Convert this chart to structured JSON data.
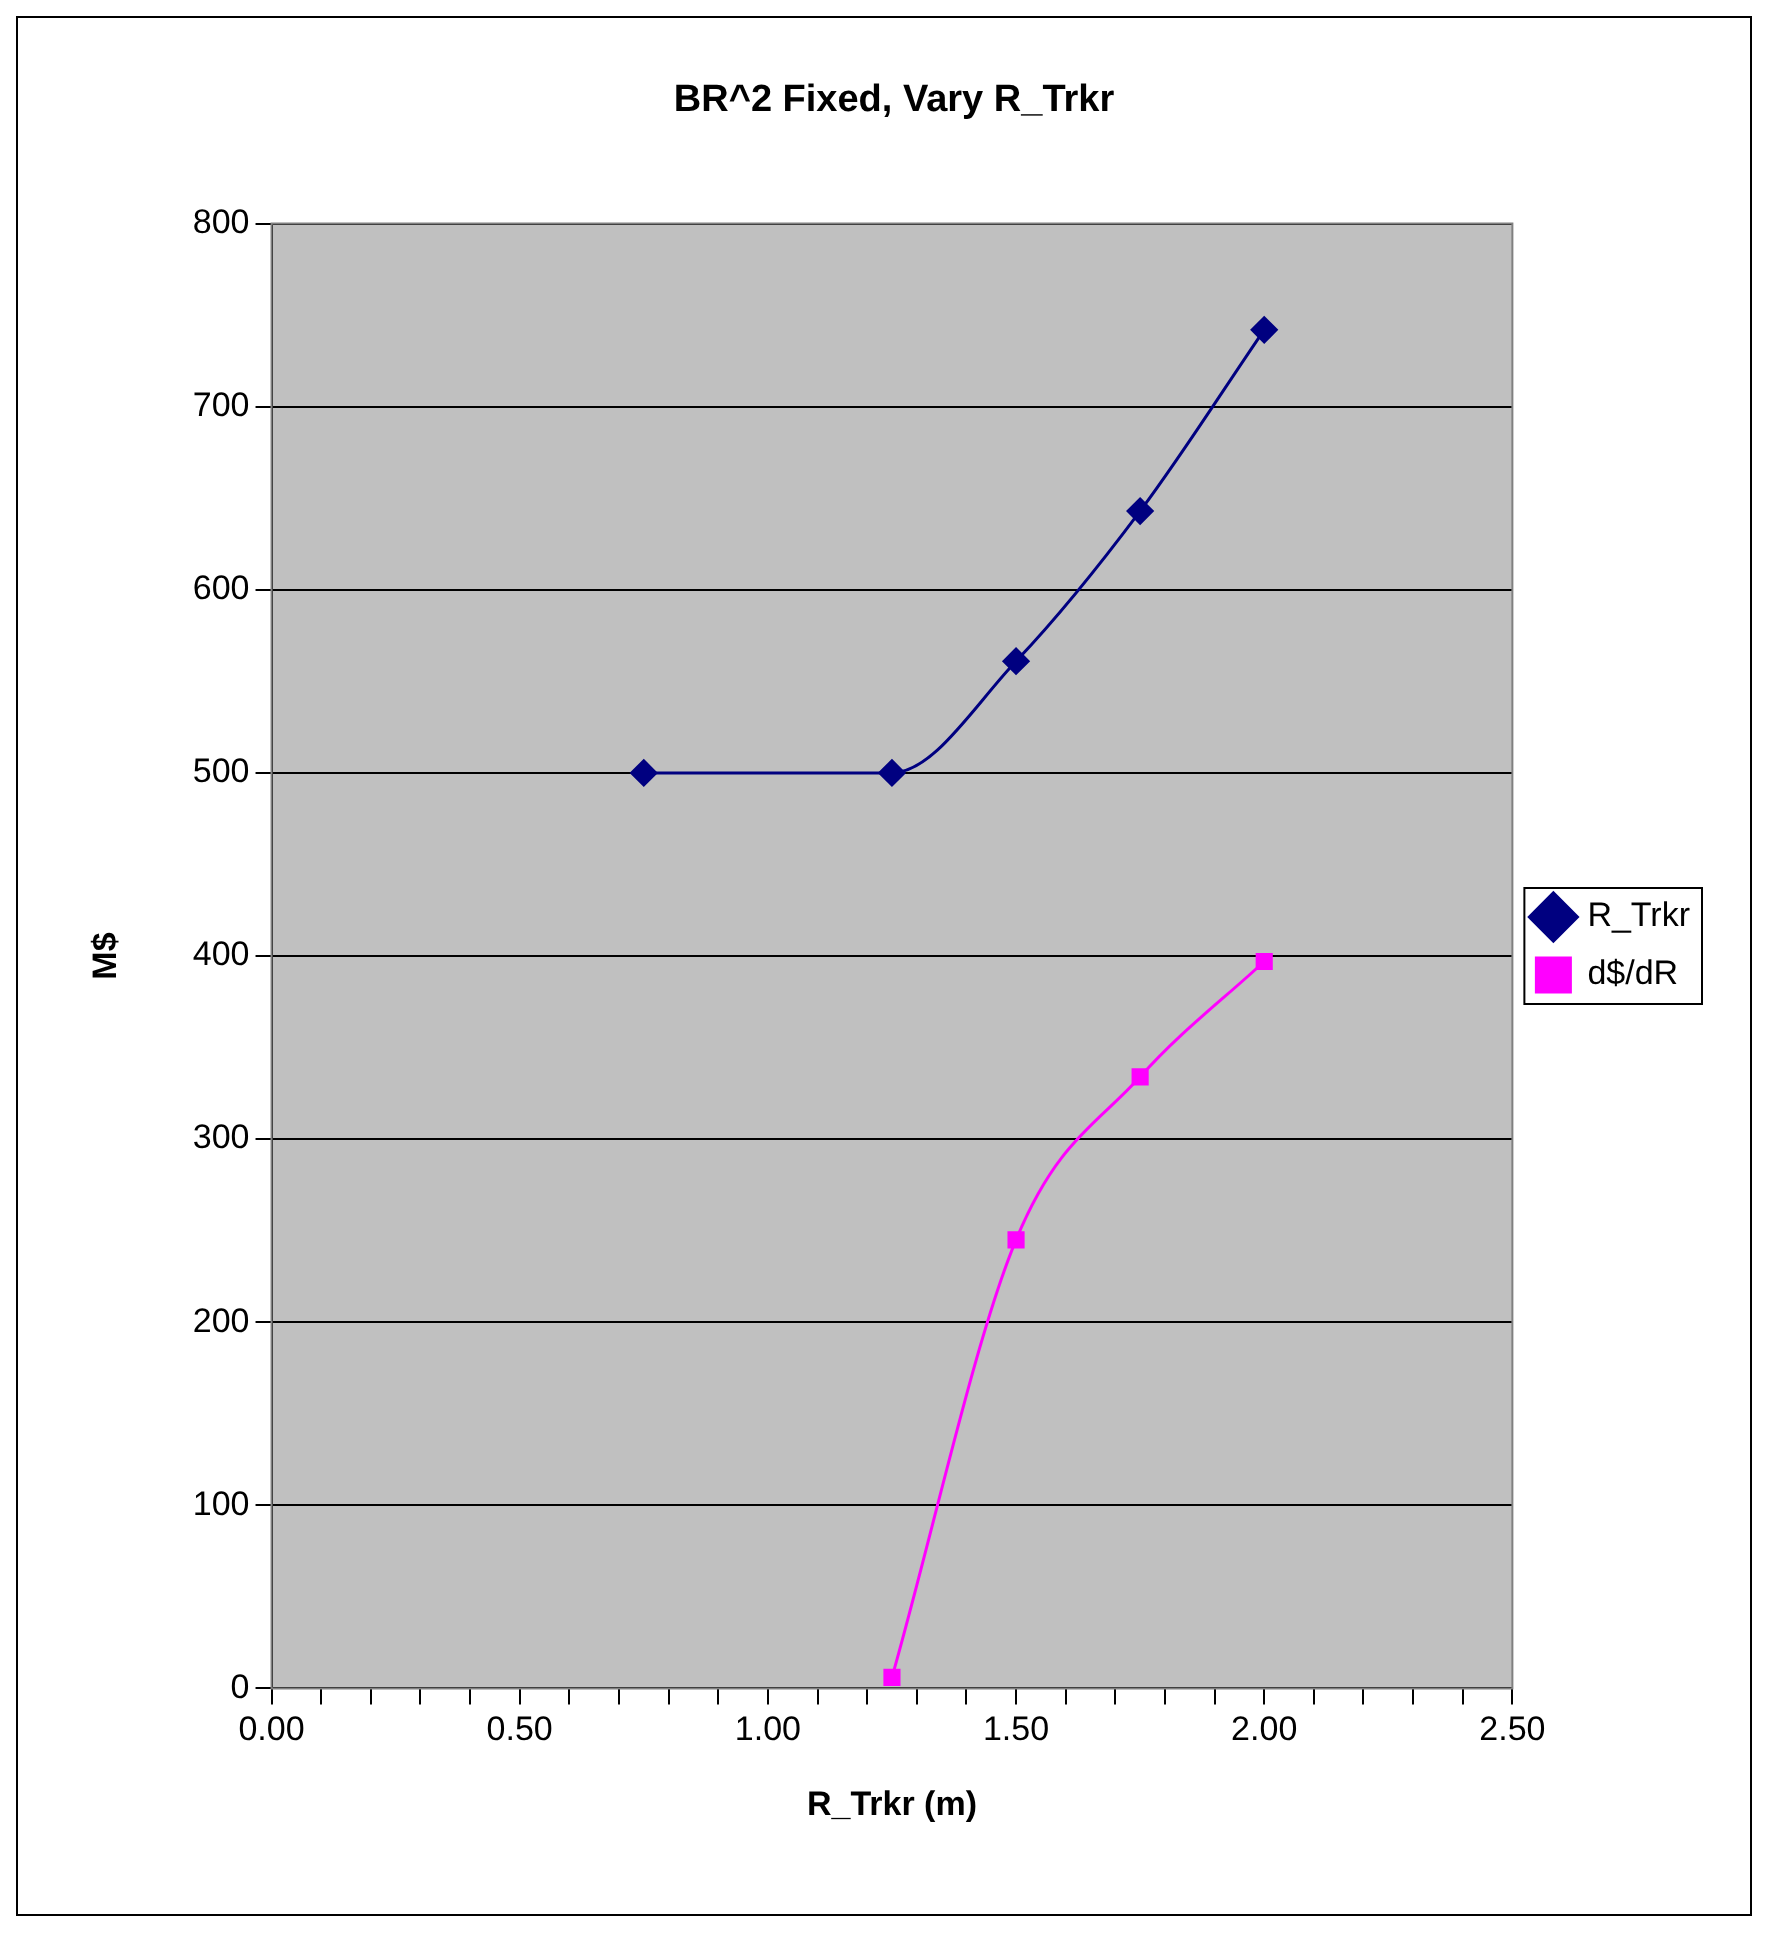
{
  "chart_data": {
    "type": "line",
    "title": "BR^2 Fixed, Vary R_Trkr",
    "xlabel": "R_Trkr (m)",
    "ylabel": "M$",
    "series": [
      {
        "name": "R_Trkr",
        "color": "#000080",
        "marker": "diamond",
        "x": [
          0.75,
          1.25,
          1.5,
          1.75,
          2.0
        ],
        "values": [
          500,
          500,
          561,
          643,
          742
        ]
      },
      {
        "name": "d$/dR",
        "color": "#ff00ff",
        "marker": "square",
        "x": [
          1.25,
          1.5,
          1.75,
          2.0
        ],
        "values": [
          6,
          245,
          334,
          397
        ]
      }
    ],
    "xlim": [
      0,
      2.5
    ],
    "xticks": [
      {
        "value": 0,
        "label": "0.00"
      },
      {
        "value": 0.1,
        "label": null
      },
      {
        "value": 0.2,
        "label": null
      },
      {
        "value": 0.3,
        "label": null
      },
      {
        "value": 0.4,
        "label": null
      },
      {
        "value": 0.5,
        "label": "0.50"
      },
      {
        "value": 0.6,
        "label": null
      },
      {
        "value": 0.7,
        "label": null
      },
      {
        "value": 0.8,
        "label": null
      },
      {
        "value": 0.9,
        "label": null
      },
      {
        "value": 1.0,
        "label": "1.00"
      },
      {
        "value": 1.1,
        "label": null
      },
      {
        "value": 1.2,
        "label": null
      },
      {
        "value": 1.3,
        "label": null
      },
      {
        "value": 1.4,
        "label": null
      },
      {
        "value": 1.5,
        "label": "1.50"
      },
      {
        "value": 1.6,
        "label": null
      },
      {
        "value": 1.7,
        "label": null
      },
      {
        "value": 1.8,
        "label": null
      },
      {
        "value": 1.9,
        "label": null
      },
      {
        "value": 2.0,
        "label": "2.00"
      },
      {
        "value": 2.1,
        "label": null
      },
      {
        "value": 2.2,
        "label": null
      },
      {
        "value": 2.3,
        "label": null
      },
      {
        "value": 2.4,
        "label": null
      },
      {
        "value": 2.5,
        "label": "2.50"
      }
    ],
    "ylim": [
      0,
      800
    ],
    "yticks": [
      0,
      100,
      200,
      300,
      400,
      500,
      600,
      700,
      800
    ],
    "grid": "y",
    "legend": "right"
  }
}
